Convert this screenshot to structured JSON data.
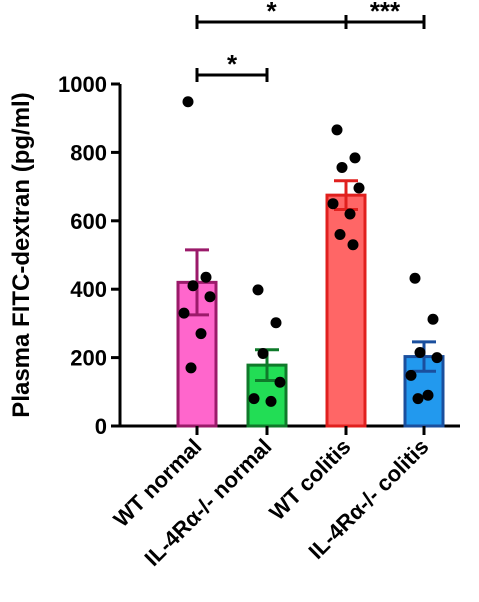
{
  "chart_data": {
    "type": "bar",
    "title": "",
    "xlabel": "",
    "ylabel": "Plasma FITC-dextran (pg/ml)",
    "ylim": [
      0,
      1000
    ],
    "yticks": [
      "0",
      "200",
      "400",
      "600",
      "800",
      "1000"
    ],
    "categories": [
      "WT normal",
      "IL-4Rα-/- normal",
      "WT colitis",
      "IL-4Rα-/- colitis"
    ],
    "values": [
      420,
      178,
      675,
      203
    ],
    "sem": [
      95,
      45,
      42,
      43
    ],
    "fill_colors": [
      "#ff66cc",
      "#22dd55",
      "#ff6666",
      "#2299ee"
    ],
    "stroke_colors": [
      "#9b1a6a",
      "#0f7a2a",
      "#e0201e",
      "#1a4f9e"
    ],
    "points": [
      [
        948,
        435,
        410,
        378,
        330,
        270,
        170
      ],
      [
        398,
        302,
        212,
        128,
        80,
        72
      ],
      [
        866,
        784,
        756,
        696,
        650,
        620,
        560,
        530
      ],
      [
        432,
        312,
        215,
        200,
        148,
        90,
        80
      ]
    ],
    "significance": [
      {
        "from": 0,
        "to": 1,
        "label": "*",
        "level": 1
      },
      {
        "from": 0,
        "to": 2,
        "label": "*",
        "level": 2
      },
      {
        "from": 2,
        "to": 3,
        "label": "***",
        "level": 2
      }
    ],
    "grid": false,
    "legend": "none"
  }
}
